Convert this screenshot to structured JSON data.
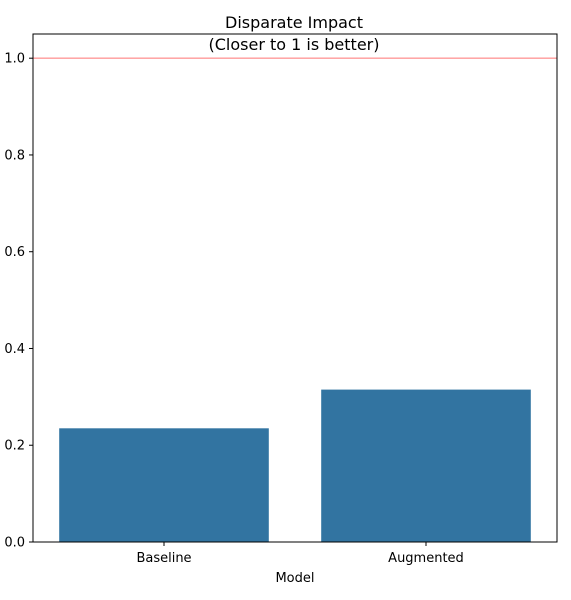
{
  "chart_data": {
    "type": "bar",
    "title": "Disparate Impact",
    "subtitle": "(Closer to 1 is better)",
    "xlabel": "Model",
    "ylabel": "",
    "categories": [
      "Baseline",
      "Augmented"
    ],
    "values": [
      0.235,
      0.315
    ],
    "ylim": [
      0,
      1.05
    ],
    "yticks": [
      0.0,
      0.2,
      0.4,
      0.6,
      0.8,
      1.0
    ],
    "ytick_labels": [
      "0.0",
      "0.2",
      "0.4",
      "0.6",
      "0.8",
      "1.0"
    ],
    "reference_line": {
      "y": 1.0,
      "color": "#ff9999"
    },
    "bar_color": "#3274a1",
    "grid": false,
    "legend": "none"
  }
}
